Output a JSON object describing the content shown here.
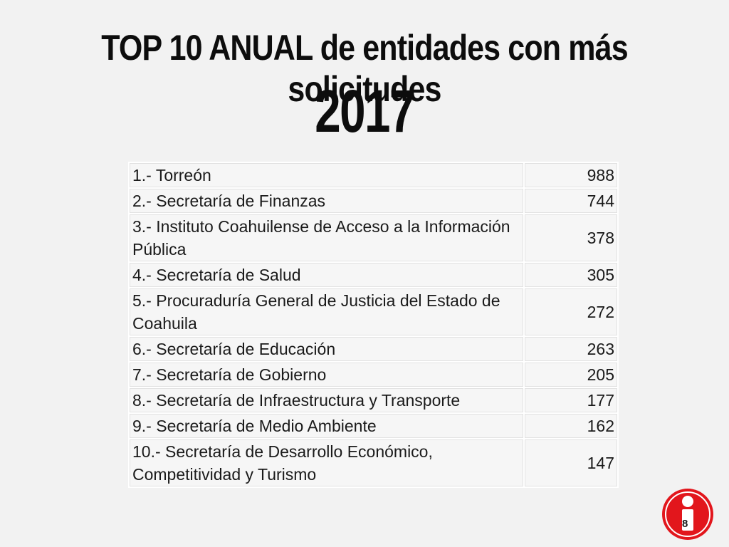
{
  "title": {
    "line1": "TOP 10 ANUAL de entidades con más solicitudes",
    "line2": "2017"
  },
  "rows": [
    {
      "name": "1.- Torreón",
      "value": "988"
    },
    {
      "name": "2.- Secretaría de Finanzas",
      "value": "744"
    },
    {
      "name": "3.- Instituto Coahuilense de Acceso a la Información Pública",
      "value": "378"
    },
    {
      "name": "4.- Secretaría de Salud",
      "value": "305"
    },
    {
      "name": "5.- Procuraduría General de Justicia del Estado de Coahuila",
      "value": "272"
    },
    {
      "name": "6.- Secretaría de Educación",
      "value": "263"
    },
    {
      "name": "7.- Secretaría de Gobierno",
      "value": "205"
    },
    {
      "name": "8.- Secretaría de Infraestructura y Transporte",
      "value": "177"
    },
    {
      "name": "9.- Secretaría de Medio Ambiente",
      "value": "162"
    },
    {
      "name": "10.- Secretaría de Desarrollo Económico, Competitividad y Turismo",
      "value": "147"
    }
  ],
  "logo": {
    "icon": "info-i-icon",
    "color": "#e2161c"
  },
  "page_number": "8"
}
